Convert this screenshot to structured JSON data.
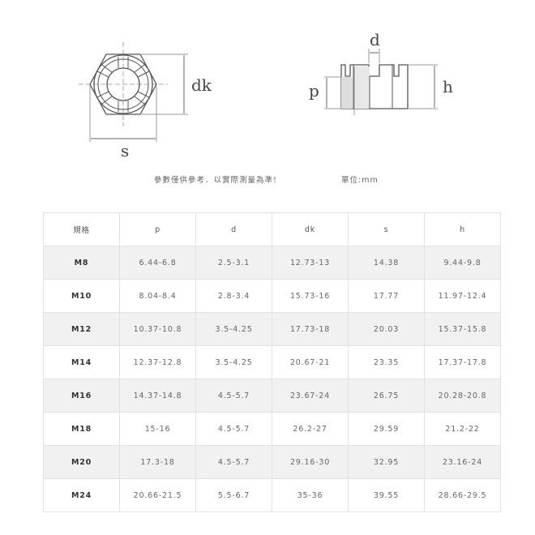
{
  "diagram": {
    "front_view_labels": {
      "dk": "dk",
      "s": "s"
    },
    "side_view_labels": {
      "d": "d",
      "p": "p",
      "h": "h"
    }
  },
  "notes": {
    "disclaimer": "參數僅供參考．以實際測量為準!",
    "unit": "單位:mm"
  },
  "table": {
    "headers": [
      "規格",
      "p",
      "d",
      "dk",
      "s",
      "h"
    ],
    "rows": [
      [
        "M8",
        "6.44-6.8",
        "2.5-3.1",
        "12.73-13",
        "14.38",
        "9.44-9.8"
      ],
      [
        "M10",
        "8.04-8.4",
        "2.8-3.4",
        "15.73-16",
        "17.77",
        "11.97-12.4"
      ],
      [
        "M12",
        "10.37-10.8",
        "3.5-4.25",
        "17.73-18",
        "20.03",
        "15.37-15.8"
      ],
      [
        "M14",
        "12.37-12.8",
        "3.5-4.25",
        "20.67-21",
        "23.35",
        "17.37-17.8"
      ],
      [
        "M16",
        "14.37-14.8",
        "4.5-5.7",
        "23.67-24",
        "26.75",
        "20.28-20.8"
      ],
      [
        "M18",
        "15-16",
        "4.5-5.7",
        "26.2-27",
        "29.59",
        "21.2-22"
      ],
      [
        "M20",
        "17.3-18",
        "4.5-5.7",
        "29.16-30",
        "32.95",
        "23.16-24"
      ],
      [
        "M24",
        "20.66-21.5",
        "5.5-6.7",
        "35-36",
        "39.55",
        "28.66-29.5"
      ]
    ]
  }
}
